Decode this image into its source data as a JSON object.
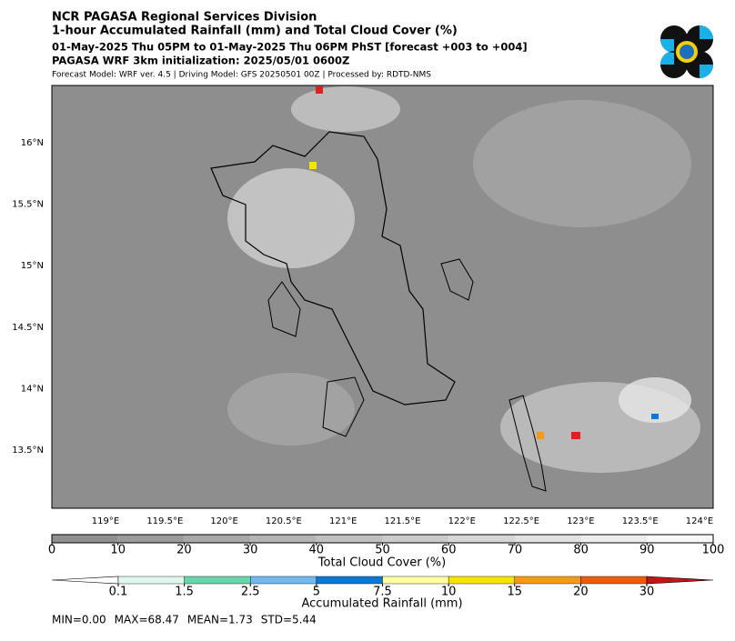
{
  "header": {
    "lines": [
      "NCR PAGASA Regional Services Division",
      "1-hour Accumulated Rainfall (mm) and Total Cloud Cover (%)",
      "01-May-2025 Thu 05PM to 01-May-2025 Thu 06PM PhST [forecast +003 to +004]",
      "PAGASA WRF 3km initialization: 2025/05/01 0600Z",
      "Forecast Model: WRF ver. 4.5 | Driving Model: GFS 20250501 00Z | Processed by: RDTD-NMS"
    ]
  },
  "map": {
    "lon_labels": [
      "119°E",
      "119.5°E",
      "120°E",
      "120.5°E",
      "121°E",
      "121.5°E",
      "122°E",
      "122.5°E",
      "123°E",
      "123.5°E",
      "124°E"
    ],
    "lat_labels": [
      "16°N",
      "15.5°N",
      "15°N",
      "14.5°N",
      "14°N",
      "13.5°N"
    ]
  },
  "cloud_colorbar": {
    "ticks": [
      0,
      10,
      20,
      30,
      40,
      50,
      60,
      70,
      80,
      90,
      100
    ],
    "label": "Total Cloud Cover (%)",
    "colors": [
      "#8f8f8f",
      "#9b9b9b",
      "#a8a8a8",
      "#b4b4b4",
      "#c0c0c0",
      "#cbcbcb",
      "#d6d6d6",
      "#e1e1e1",
      "#ececec",
      "#f8f8f8"
    ]
  },
  "rain_colorbar": {
    "ticks": [
      0.1,
      1.5,
      2.5,
      5,
      7.5,
      10,
      15,
      20,
      30
    ],
    "label": "Accumulated Rainfall (mm)",
    "colors": [
      "#ffffff",
      "#e0f7ee",
      "#66d6ab",
      "#74b8f0",
      "#0a78d6",
      "#ffffa6",
      "#f6e400",
      "#f59a14",
      "#f05a0a",
      "#c01818"
    ]
  },
  "stats": [
    "MIN=0.00",
    "MAX=68.47",
    "MEAN=1.73",
    "STD=5.44"
  ]
}
